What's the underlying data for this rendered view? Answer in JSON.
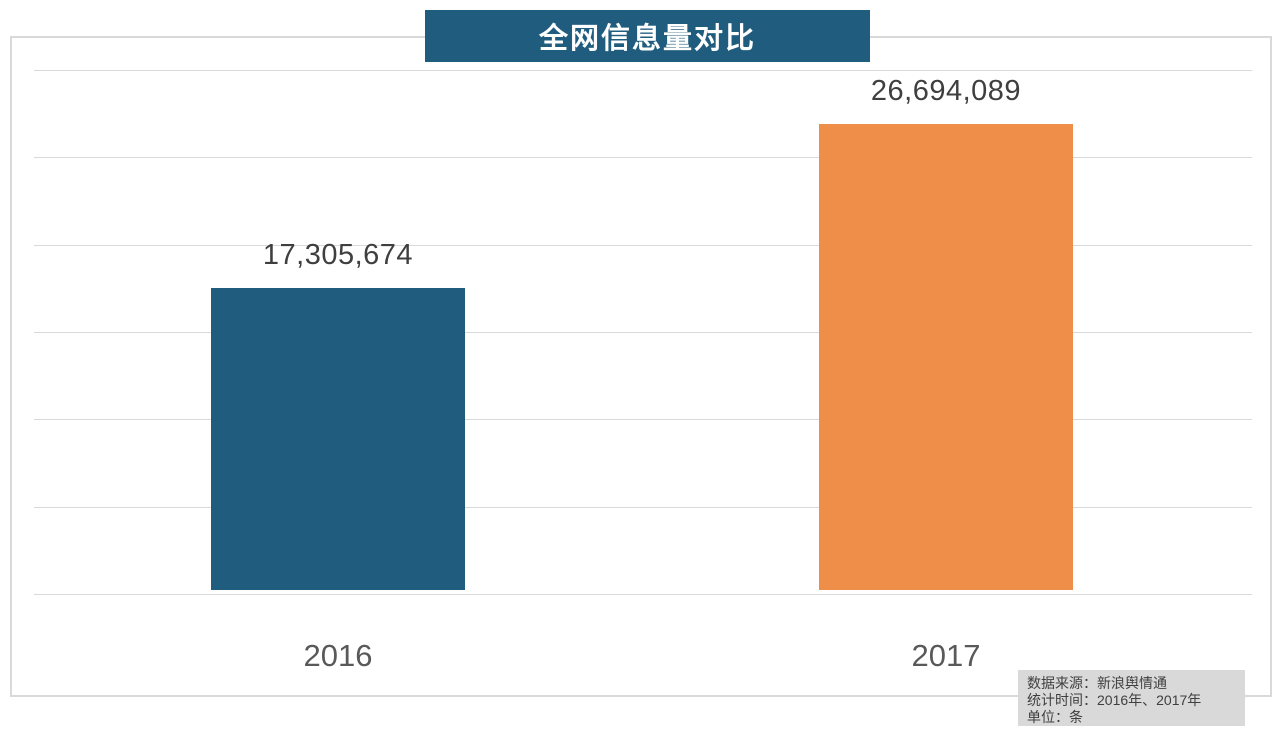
{
  "chart_data": {
    "type": "bar",
    "title": "全网信息量对比",
    "categories": [
      "2016",
      "2017"
    ],
    "values": [
      17305674,
      26694089
    ],
    "value_labels": [
      "17,305,674",
      "26,694,089"
    ],
    "series": [
      {
        "name": "2016",
        "value": 17305674,
        "color": "#1f5c7e"
      },
      {
        "name": "2017",
        "value": 26694089,
        "color": "#ef8e49"
      }
    ],
    "bar_colors": [
      "#1f5c7e",
      "#ef8e49"
    ],
    "xlabel": "",
    "ylabel": "",
    "ylim": [
      0,
      30000000
    ],
    "gridline_step": 5000000,
    "grid": true,
    "legend": false,
    "y_tick_labels_visible": false
  },
  "source_box": {
    "lines": [
      "数据来源：新浪舆情通",
      "统计时间：2016年、2017年",
      "单位：条"
    ]
  },
  "colors": {
    "title_background": "#1f5c7e",
    "title_text": "#ffffff",
    "grid": "#d9d9d9",
    "frame_border": "#d9d9d9",
    "value_label_text": "#3f3f3f",
    "category_label_text": "#595959",
    "source_background": "#d9d9d9",
    "source_text": "#3f3f3f"
  }
}
